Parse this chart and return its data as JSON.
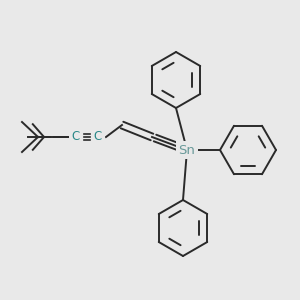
{
  "background_color": "#e9e9e9",
  "bond_color": "#2a2a2a",
  "sn_color": "#6a9a9a",
  "c_color": "#2a8888",
  "line_width": 1.4,
  "figsize": [
    3.0,
    3.0
  ],
  "dpi": 100,
  "sn_label": "Sn",
  "c_label": "C",
  "c_label2": "C",
  "sn_fontsize": 9.5,
  "c_fontsize": 8.5
}
